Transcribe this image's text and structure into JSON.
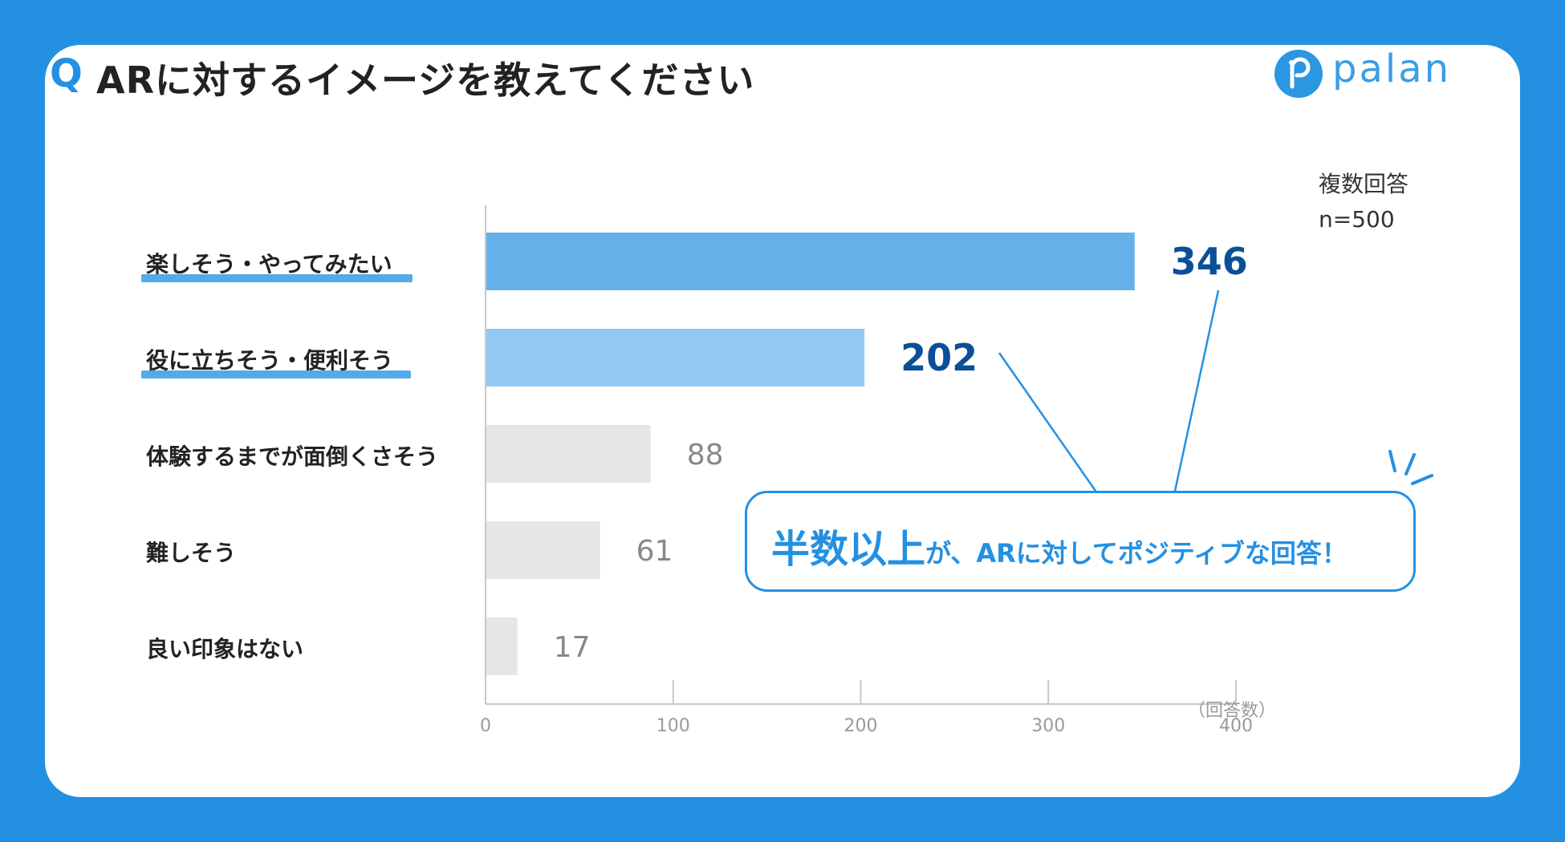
{
  "header": {
    "q_mark": "Q",
    "title": "ARに対するイメージを教えてください"
  },
  "logo": {
    "text": "palan"
  },
  "note": {
    "line1": "複数回答",
    "line2": "n=500"
  },
  "callout": {
    "emphasis": "半数以上",
    "rest": "が、ARに対してポジティブな回答！"
  },
  "colors": {
    "background": "#2490e2",
    "bar_top": "#66b1e9",
    "bar_second": "#93c9f1",
    "bar_other": "#e6e6e6",
    "value_highlight": "#0b4f98",
    "value_other": "#888888",
    "accent": "#2490e2"
  },
  "chart_data": {
    "type": "bar",
    "orientation": "horizontal",
    "categories": [
      "楽しそう・やってみたい",
      "役に立ちそう・便利そう",
      "体験するまでが面倒くさそう",
      "難しそう",
      "良い印象はない"
    ],
    "values": [
      346,
      202,
      88,
      61,
      17
    ],
    "highlighted": [
      true,
      true,
      false,
      false,
      false
    ],
    "xlim": [
      0,
      400
    ],
    "xticks": [
      "0",
      "100",
      "200",
      "300",
      "400"
    ],
    "xlabel": "（回答数）",
    "grid": false
  }
}
